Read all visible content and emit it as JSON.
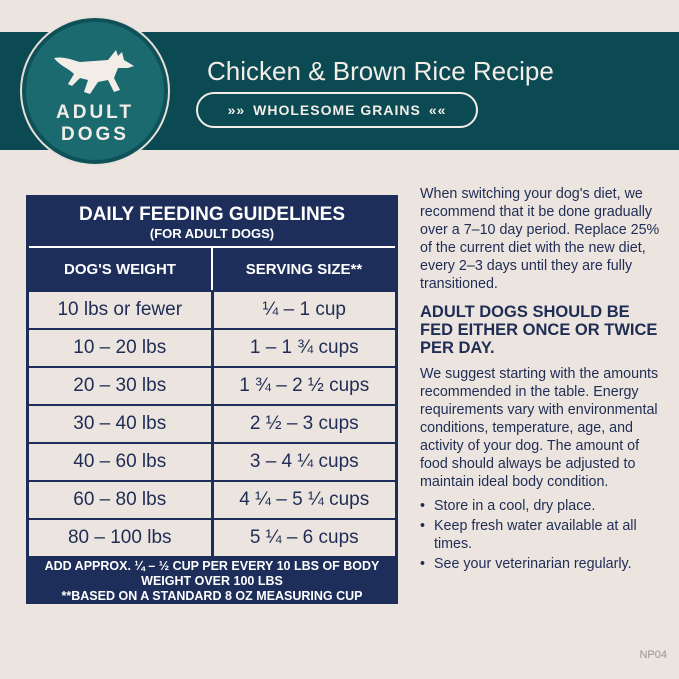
{
  "badge": {
    "line1": "ADULT",
    "line2": "DOGS",
    "icon": "running-dog-icon"
  },
  "title": "Chicken & Brown Rice Recipe",
  "pill": "WHOLESOME GRAINS",
  "colors": {
    "band": "#0b4a52",
    "badge": "#1a6a70",
    "navy": "#1e2e5a",
    "background": "#ece4df"
  },
  "table": {
    "title": "DAILY FEEDING GUIDELINES",
    "subtitle": "(FOR ADULT DOGS)",
    "headers": [
      "DOG'S WEIGHT",
      "SERVING SIZE**"
    ],
    "rows": [
      [
        "10 lbs or fewer",
        "¼ – 1 cup"
      ],
      [
        "10 – 20 lbs",
        "1 – 1 ¾ cups"
      ],
      [
        "20 – 30 lbs",
        "1 ¾ – 2 ½ cups"
      ],
      [
        "30 – 40 lbs",
        "2 ½ – 3 cups"
      ],
      [
        "40 – 60 lbs",
        "3 – 4 ¼ cups"
      ],
      [
        "60 – 80 lbs",
        "4 ¼ – 5 ¼ cups"
      ],
      [
        "80 – 100 lbs",
        "5 ¼ – 6 cups"
      ]
    ],
    "footnote1": "ADD APPROX. ¼ – ½ CUP PER EVERY 10 LBS OF BODY WEIGHT OVER 100 LBS",
    "footnote2": "**BASED ON A STANDARD 8 OZ MEASURING CUP"
  },
  "side": {
    "intro": "When switching your dog's diet, we recommend that it be done gradually over a 7–10 day period. Replace 25% of the current diet with the new diet, every 2–3 days until they are fully transitioned.",
    "heading": "ADULT DOGS SHOULD BE FED EITHER ONCE OR TWICE PER DAY.",
    "body": "We suggest starting with the amounts recommended in the table. Energy requirements vary with environmental conditions, temperature, age, and activity of your dog. The amount of food should always be adjusted to maintain ideal body condition.",
    "bullets": [
      "Store in a cool, dry place.",
      "Keep fresh water available at all times.",
      "See your veterinarian regularly."
    ]
  },
  "code": "NP04"
}
